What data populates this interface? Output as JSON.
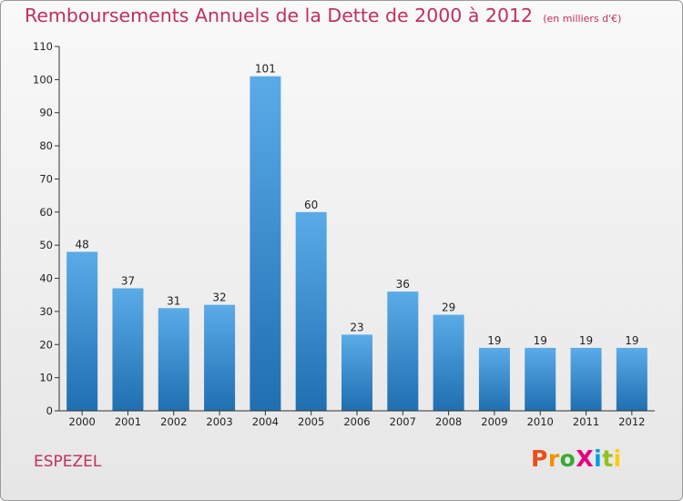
{
  "title": "Remboursements Annuels de la Dette de 2000 à 2012",
  "unit": "(en milliers d'€)",
  "commune": "ESPEZEL",
  "brand": "ProXiti",
  "colors": {
    "title": "#c22f5c",
    "bar_light": "#5aabe8",
    "bar_dark": "#1f6fb1",
    "axis": "#333333"
  },
  "chart_data": {
    "type": "bar",
    "categories": [
      "2000",
      "2001",
      "2002",
      "2003",
      "2004",
      "2005",
      "2006",
      "2007",
      "2008",
      "2009",
      "2010",
      "2011",
      "2012"
    ],
    "values": [
      48,
      37,
      31,
      32,
      101,
      60,
      23,
      36,
      29,
      19,
      19,
      19,
      19
    ],
    "ylim": [
      0,
      110
    ],
    "yticks": [
      0,
      10,
      20,
      30,
      40,
      50,
      60,
      70,
      80,
      90,
      100,
      110
    ],
    "grid": false,
    "title": "Remboursements Annuels de la Dette de 2000 à 2012",
    "ylabel": "",
    "xlabel": ""
  }
}
